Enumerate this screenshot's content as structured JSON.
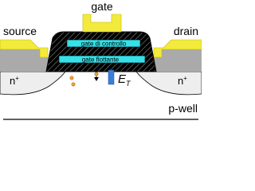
{
  "labels": {
    "gate": "gate",
    "source": "source",
    "drain": "drain",
    "control_gate": "gate di controllo",
    "floating_gate": "gate flottante",
    "left_region": {
      "base": "n",
      "sup": "+"
    },
    "right_region": {
      "base": "n",
      "sup": "+"
    },
    "well": "p-well",
    "energy": {
      "base": "E",
      "sub": "T"
    }
  }
}
